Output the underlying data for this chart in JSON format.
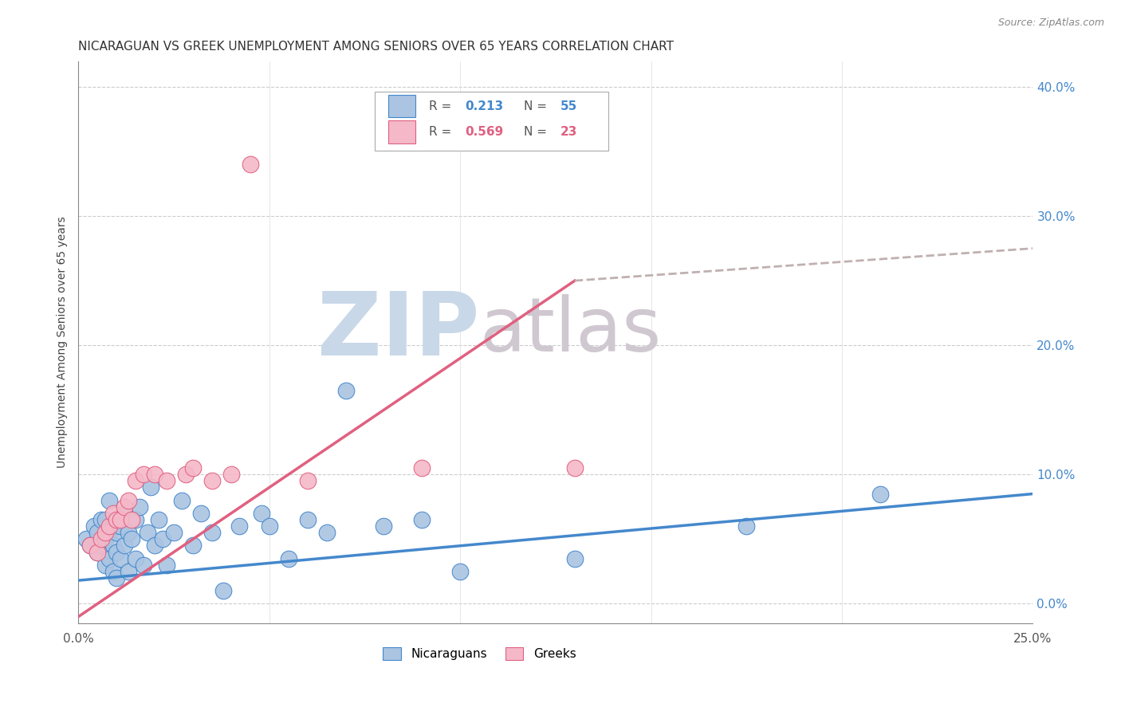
{
  "title": "NICARAGUAN VS GREEK UNEMPLOYMENT AMONG SENIORS OVER 65 YEARS CORRELATION CHART",
  "source": "Source: ZipAtlas.com",
  "ylabel_label": "Unemployment Among Seniors over 65 years",
  "xmin": 0.0,
  "xmax": 0.25,
  "ymin": -0.015,
  "ymax": 0.42,
  "blue_color": "#aac4e2",
  "pink_color": "#f5b8c8",
  "blue_line_color": "#4488cc",
  "pink_line_color": "#e06080",
  "dashed_line_color": "#c0b0b0",
  "grid_color": "#cccccc",
  "watermark_zip_color": "#c8d8e8",
  "watermark_atlas_color": "#d0c8d0",
  "title_fontsize": 11,
  "right_tick_color": "#4488cc",
  "nicaraguans_x": [
    0.002,
    0.003,
    0.004,
    0.005,
    0.005,
    0.006,
    0.006,
    0.007,
    0.007,
    0.007,
    0.008,
    0.008,
    0.008,
    0.009,
    0.009,
    0.009,
    0.01,
    0.01,
    0.01,
    0.011,
    0.011,
    0.012,
    0.012,
    0.013,
    0.013,
    0.014,
    0.015,
    0.015,
    0.016,
    0.017,
    0.018,
    0.019,
    0.02,
    0.021,
    0.022,
    0.023,
    0.025,
    0.027,
    0.03,
    0.032,
    0.035,
    0.038,
    0.042,
    0.048,
    0.05,
    0.055,
    0.06,
    0.065,
    0.07,
    0.08,
    0.09,
    0.1,
    0.13,
    0.175,
    0.21
  ],
  "nicaraguans_y": [
    0.05,
    0.045,
    0.06,
    0.055,
    0.04,
    0.045,
    0.065,
    0.03,
    0.05,
    0.065,
    0.035,
    0.055,
    0.08,
    0.025,
    0.045,
    0.06,
    0.02,
    0.04,
    0.055,
    0.035,
    0.06,
    0.045,
    0.07,
    0.025,
    0.055,
    0.05,
    0.065,
    0.035,
    0.075,
    0.03,
    0.055,
    0.09,
    0.045,
    0.065,
    0.05,
    0.03,
    0.055,
    0.08,
    0.045,
    0.07,
    0.055,
    0.01,
    0.06,
    0.07,
    0.06,
    0.035,
    0.065,
    0.055,
    0.165,
    0.06,
    0.065,
    0.025,
    0.035,
    0.06,
    0.085
  ],
  "greeks_x": [
    0.003,
    0.005,
    0.006,
    0.007,
    0.008,
    0.009,
    0.01,
    0.011,
    0.012,
    0.013,
    0.014,
    0.015,
    0.017,
    0.02,
    0.023,
    0.028,
    0.03,
    0.035,
    0.04,
    0.045,
    0.06,
    0.09,
    0.13
  ],
  "greeks_y": [
    0.045,
    0.04,
    0.05,
    0.055,
    0.06,
    0.07,
    0.065,
    0.065,
    0.075,
    0.08,
    0.065,
    0.095,
    0.1,
    0.1,
    0.095,
    0.1,
    0.105,
    0.095,
    0.1,
    0.34,
    0.095,
    0.105,
    0.105
  ],
  "blue_trendline_x0": 0.0,
  "blue_trendline_y0": 0.018,
  "blue_trendline_x1": 0.25,
  "blue_trendline_y1": 0.085,
  "pink_trendline_x0": 0.0,
  "pink_trendline_y0": -0.01,
  "pink_trendline_x1_solid": 0.13,
  "pink_trendline_y1_solid": 0.25,
  "pink_trendline_x1_dash": 0.25,
  "pink_trendline_y1_dash": 0.275
}
